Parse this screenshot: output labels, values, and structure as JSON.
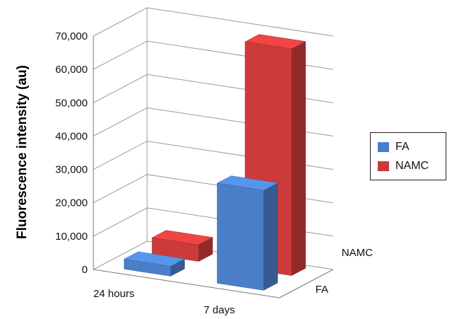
{
  "chart_data": {
    "type": "bar",
    "subtype": "3d-clustered",
    "title": "",
    "ylabel": "Fluorescence intensity (au)",
    "xlabel": "",
    "categories": [
      "24 hours",
      "7 days"
    ],
    "series": [
      {
        "name": "FA",
        "values": [
          3000,
          30000
        ],
        "color": "#4a7ec8"
      },
      {
        "name": "NAMC",
        "values": [
          5000,
          68000
        ],
        "color": "#cc3a3a"
      }
    ],
    "depth_labels": [
      "FA",
      "NAMC"
    ],
    "ylim": [
      0,
      70000
    ],
    "yticks": [
      "0",
      "10,000",
      "20,000",
      "30,000",
      "40,000",
      "50,000",
      "60,000",
      "70,000"
    ],
    "grid": true,
    "legend_position": "right"
  }
}
